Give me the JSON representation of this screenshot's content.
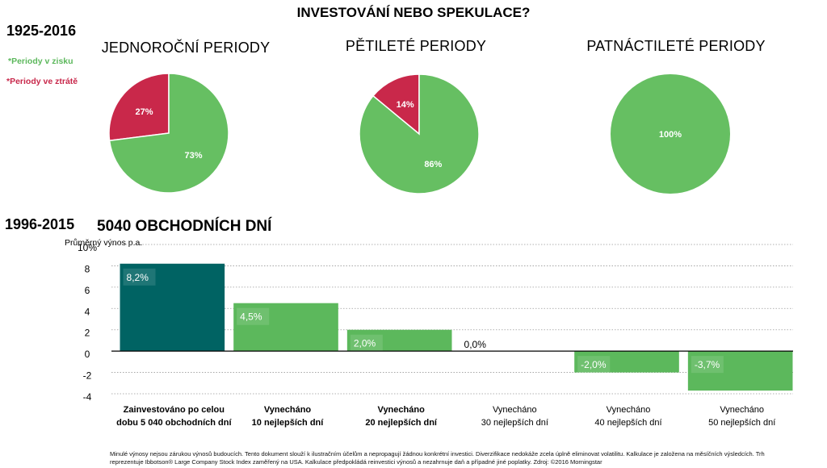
{
  "title": "INVESTOVÁNÍ NEBO SPEKULACE?",
  "period_top": "1925-2016",
  "period_bottom": "1996-2015",
  "legend": {
    "gain": "*Periody v zisku",
    "loss": "*Periody ve ztrátě",
    "gain_color": "#66bf62",
    "loss_color": "#c9284a"
  },
  "bar_title": "5040 OBCHODNÍCH DNÍ",
  "footnote": "Minulé výnosy nejsou zárukou výnosů budoucích. Tento dokument slouží k ilustračním účelům a nepropagují žádnou konkrétní investici. Diverzifikace nedokáže zcela úplně eliminovat volatilitu. Kalkulace je založena na měsíčních výsledcích. Trh reprezentuje Ibbotson® Large Company Stock Index zaměřený na USA. Kalkulace předpokládá reinvestici výnosů a nezahrnuje daň a případné jiné poplatky. Zdroj: ©2016 Morningstar",
  "chart_data": [
    {
      "type": "pie",
      "title": "JEDNOROČNÍ PERIODY",
      "slices": [
        {
          "label": "Periody v zisku",
          "value": 73,
          "text": "73%",
          "color": "#66bf62"
        },
        {
          "label": "Periody ve ztrátě",
          "value": 27,
          "text": "27%",
          "color": "#c9284a"
        }
      ]
    },
    {
      "type": "pie",
      "title": "PĚTILETÉ PERIODY",
      "slices": [
        {
          "label": "Periody v zisku",
          "value": 86,
          "text": "86%",
          "color": "#66bf62"
        },
        {
          "label": "Periody ve ztrátě",
          "value": 14,
          "text": "14%",
          "color": "#c9284a"
        }
      ]
    },
    {
      "type": "pie",
      "title": "PATNÁCTILETÉ PERIODY",
      "slices": [
        {
          "label": "Periody v zisku",
          "value": 100,
          "text": "100%",
          "color": "#66bf62"
        }
      ]
    },
    {
      "type": "bar",
      "title": "5040 OBCHODNÍCH DNÍ",
      "ylabel": "Průměrný výnos p.a.",
      "ylim": [
        -4,
        10
      ],
      "yticks": [
        {
          "value": 10,
          "label": "10%"
        },
        {
          "value": 8,
          "label": "8"
        },
        {
          "value": 6,
          "label": "6"
        },
        {
          "value": 4,
          "label": "4"
        },
        {
          "value": 2,
          "label": "2"
        },
        {
          "value": 0,
          "label": "0"
        },
        {
          "value": -2,
          "label": "-2"
        },
        {
          "value": -4,
          "label": "-4"
        }
      ],
      "grid": true,
      "categories": [
        {
          "line1": "Zainvestováno po celou",
          "line2": "dobu 5 040 obchodních dní",
          "bold": true
        },
        {
          "line1": "Vynecháno",
          "line2": "10 nejlepších dní",
          "bold": true
        },
        {
          "line1": "Vynecháno",
          "line2": "20 nejlepších dní",
          "bold": true
        },
        {
          "line1": "Vynecháno",
          "line2": "30 nejlepších dní",
          "bold": false
        },
        {
          "line1": "Vynecháno",
          "line2": "40 nejlepších dní",
          "bold": false
        },
        {
          "line1": "Vynecháno",
          "line2": "50 nejlepších dní",
          "bold": false
        }
      ],
      "values": [
        8.2,
        4.5,
        2.0,
        0.0,
        -2.0,
        -3.7
      ],
      "labels": [
        "8,2%",
        "4,5%",
        "2,0%",
        "0,0%",
        "-2,0%",
        "-3,7%"
      ],
      "colors": [
        "#006363",
        "#5cb85c",
        "#5cb85c",
        "#5cb85c",
        "#5cb85c",
        "#5cb85c"
      ]
    }
  ]
}
